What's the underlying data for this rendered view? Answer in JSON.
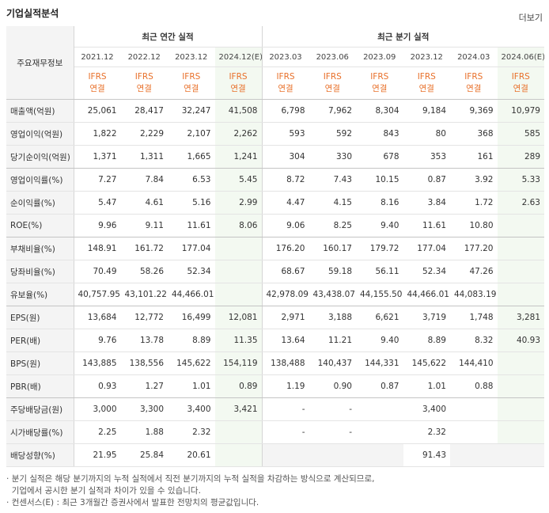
{
  "header": {
    "title": "기업실적분석",
    "more": "더보기"
  },
  "table": {
    "corner": "주요재무정보",
    "groups": [
      {
        "label": "최근 연간 실적",
        "span": 4
      },
      {
        "label": "최근 분기 실적",
        "span": 6
      }
    ],
    "columns": [
      {
        "period": "2021.12",
        "standard": "IFRS",
        "scope": "연결",
        "estimate": false
      },
      {
        "period": "2022.12",
        "standard": "IFRS",
        "scope": "연결",
        "estimate": false
      },
      {
        "period": "2023.12",
        "standard": "IFRS",
        "scope": "연결",
        "estimate": false
      },
      {
        "period": "2024.12(E)",
        "standard": "IFRS",
        "scope": "연결",
        "estimate": true
      },
      {
        "period": "2023.03",
        "standard": "IFRS",
        "scope": "연결",
        "estimate": false
      },
      {
        "period": "2023.06",
        "standard": "IFRS",
        "scope": "연결",
        "estimate": false
      },
      {
        "period": "2023.09",
        "standard": "IFRS",
        "scope": "연결",
        "estimate": false
      },
      {
        "period": "2023.12",
        "standard": "IFRS",
        "scope": "연결",
        "estimate": false
      },
      {
        "period": "2024.03",
        "standard": "IFRS",
        "scope": "연결",
        "estimate": false
      },
      {
        "period": "2024.06(E)",
        "standard": "IFRS",
        "scope": "연결",
        "estimate": true
      }
    ],
    "rows": [
      {
        "label": "매출액(억원)",
        "values": [
          "25,061",
          "28,417",
          "32,247",
          "41,508",
          "6,798",
          "7,962",
          "8,304",
          "9,184",
          "9,369",
          "10,979"
        ]
      },
      {
        "label": "영업이익(억원)",
        "values": [
          "1,822",
          "2,229",
          "2,107",
          "2,262",
          "593",
          "592",
          "843",
          "80",
          "368",
          "585"
        ]
      },
      {
        "label": "당기순이익(억원)",
        "values": [
          "1,371",
          "1,311",
          "1,665",
          "1,241",
          "304",
          "330",
          "678",
          "353",
          "161",
          "289"
        ],
        "group_end": true
      },
      {
        "label": "영업이익률(%)",
        "values": [
          "7.27",
          "7.84",
          "6.53",
          "5.45",
          "8.72",
          "7.43",
          "10.15",
          "0.87",
          "3.92",
          "5.33"
        ]
      },
      {
        "label": "순이익률(%)",
        "values": [
          "5.47",
          "4.61",
          "5.16",
          "2.99",
          "4.47",
          "4.15",
          "8.16",
          "3.84",
          "1.72",
          "2.63"
        ]
      },
      {
        "label": "ROE(%)",
        "values": [
          "9.96",
          "9.11",
          "11.61",
          "8.06",
          "9.06",
          "8.25",
          "9.40",
          "11.61",
          "10.80",
          null
        ],
        "group_end": true
      },
      {
        "label": "부채비율(%)",
        "values": [
          "148.91",
          "161.72",
          "177.04",
          null,
          "176.20",
          "160.17",
          "179.72",
          "177.04",
          "177.20",
          null
        ]
      },
      {
        "label": "당좌비율(%)",
        "values": [
          "70.49",
          "58.26",
          "52.34",
          null,
          "68.67",
          "59.18",
          "56.11",
          "52.34",
          "47.26",
          null
        ]
      },
      {
        "label": "유보율(%)",
        "values": [
          "40,757.95",
          "43,101.22",
          "44,466.01",
          null,
          "42,978.09",
          "43,438.07",
          "44,155.50",
          "44,466.01",
          "44,083.19",
          null
        ],
        "group_end": true
      },
      {
        "label": "EPS(원)",
        "values": [
          "13,684",
          "12,772",
          "16,499",
          "12,081",
          "2,971",
          "3,188",
          "6,621",
          "3,719",
          "1,748",
          "3,281"
        ]
      },
      {
        "label": "PER(배)",
        "values": [
          "9.76",
          "13.78",
          "8.89",
          "11.35",
          "13.64",
          "11.21",
          "9.40",
          "8.89",
          "8.32",
          "40.93"
        ]
      },
      {
        "label": "BPS(원)",
        "values": [
          "143,885",
          "138,556",
          "145,622",
          "154,119",
          "138,488",
          "140,437",
          "144,331",
          "145,622",
          "144,410",
          null
        ]
      },
      {
        "label": "PBR(배)",
        "values": [
          "0.93",
          "1.27",
          "1.01",
          "0.89",
          "1.19",
          "0.90",
          "0.87",
          "1.01",
          "0.88",
          null
        ],
        "group_end": true
      },
      {
        "label": "주당배당금(원)",
        "values": [
          "3,000",
          "3,300",
          "3,400",
          "3,421",
          "-",
          "-",
          null,
          "3,400",
          null,
          null
        ]
      },
      {
        "label": "시가배당률(%)",
        "values": [
          "2.25",
          "1.88",
          "2.32",
          null,
          "-",
          "-",
          null,
          "2.32",
          null,
          null
        ]
      },
      {
        "label": "배당성향(%)",
        "values": [
          "21.95",
          "25.84",
          "20.61",
          null,
          null,
          null,
          null,
          "91.43",
          null,
          null
        ],
        "shade_empty": true
      }
    ]
  },
  "notes": [
    "분기 실적은 해당 분기까지의 누적 실적에서 직전 분기까지의 누적 실적을 차감하는 방식으로 계산되므로,",
    "기업에서 공시한 분기 실적과 차이가 있을 수 있습니다.",
    "컨센서스(E) : 최근 3개월간 증권사에서 발표한 전망치의 평균값입니다."
  ]
}
